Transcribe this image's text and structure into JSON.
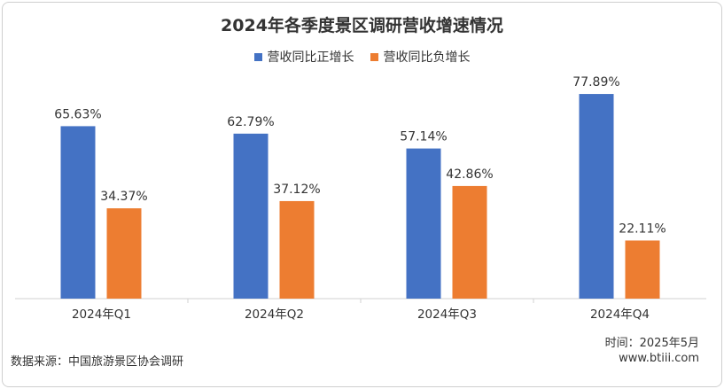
{
  "title": "2024年各季度景区调研营收增速情况",
  "chart_data": {
    "type": "bar",
    "categories": [
      "2024年Q1",
      "2024年Q2",
      "2024年Q3",
      "2024年Q4"
    ],
    "series": [
      {
        "name": "营收同比正增长",
        "color": "#4472C4",
        "values": [
          65.63,
          62.79,
          57.14,
          77.89
        ],
        "labels": [
          "65.63%",
          "62.79%",
          "57.14%",
          "77.89%"
        ]
      },
      {
        "name": "营收同比负增长",
        "color": "#ED7D31",
        "values": [
          34.37,
          37.12,
          42.86,
          22.11
        ],
        "labels": [
          "34.37%",
          "37.12%",
          "42.86%",
          "22.11%"
        ]
      }
    ],
    "ylim": [
      0,
      85
    ],
    "grid": false,
    "legend_position": "top-center"
  },
  "footer": {
    "source": "数据来源：中国旅游景区协会调研",
    "date": "时间：2025年5月",
    "site": "www.btiii.com"
  }
}
